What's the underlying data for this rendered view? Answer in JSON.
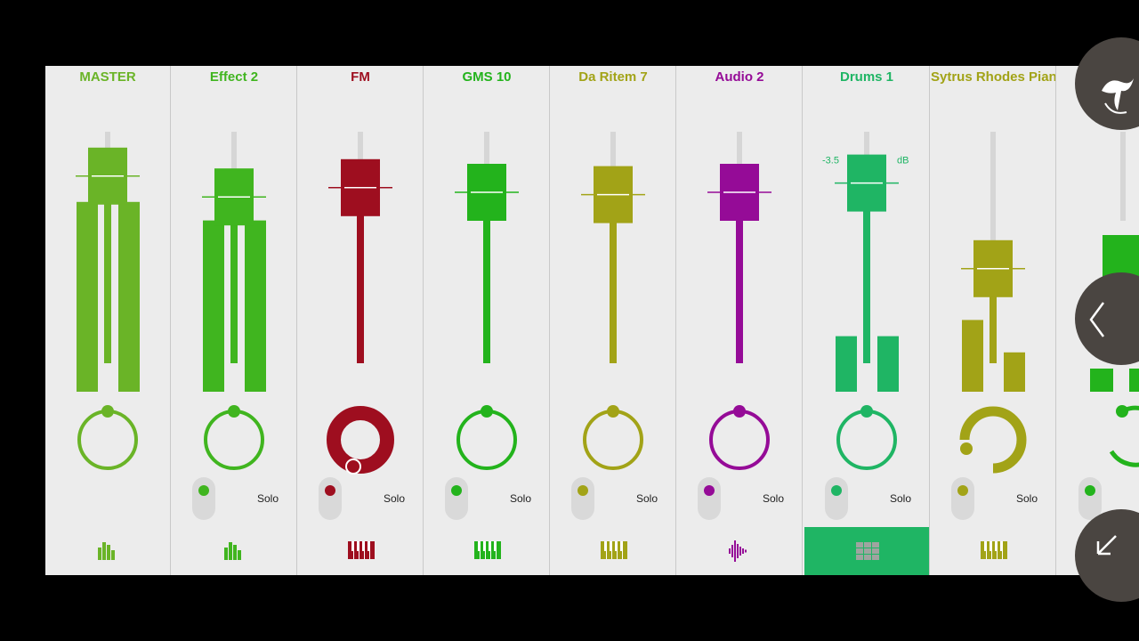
{
  "channels": [
    {
      "name": "MASTER",
      "color": "#6ab427",
      "meter": true,
      "solo": false,
      "icon": "meter-bars-icon",
      "pan": "center",
      "fader": 0.87
    },
    {
      "name": "Effect 2",
      "color": "#40b51f",
      "meter": true,
      "solo": true,
      "solo_label": "Solo",
      "icon": "meter-bars-icon",
      "pan": "center",
      "fader": 0.78
    },
    {
      "name": "FM",
      "color": "#9e0e1f",
      "meter": false,
      "solo": true,
      "solo_label": "Solo",
      "icon": "piano-keys-icon",
      "pan": "hard-left",
      "fader": 0.82
    },
    {
      "name": "GMS 10",
      "color": "#23b31c",
      "meter": false,
      "solo": true,
      "solo_label": "Solo",
      "icon": "piano-keys-icon",
      "pan": "center",
      "fader": 0.8
    },
    {
      "name": "Da Ritem 7",
      "color": "#a2a317",
      "meter": false,
      "solo": true,
      "solo_label": "Solo",
      "icon": "piano-keys-icon",
      "pan": "center",
      "fader": 0.79
    },
    {
      "name": "Audio 2",
      "color": "#950b97",
      "meter": false,
      "solo": true,
      "solo_label": "Solo",
      "icon": "waveform-icon",
      "pan": "center",
      "fader": 0.8
    },
    {
      "name": "Drums 1",
      "color": "#1fb564",
      "meter": true,
      "solo": true,
      "solo_label": "Solo",
      "icon": "drum-grid-icon",
      "pan": "center",
      "fader": 0.84,
      "db_value": "-3.5",
      "db_unit": "dB",
      "selected": true
    },
    {
      "name": "Sytrus Rhodes Piano",
      "color": "#a2a317",
      "meter": true,
      "solo": true,
      "solo_label": "Solo",
      "icon": "piano-keys-icon",
      "pan": "left",
      "fader": 0.47
    }
  ],
  "partial_channel": {
    "color": "#23b31c"
  },
  "colors": {
    "panel_bg": "#ececec",
    "fab_bg": "#4a4541"
  },
  "fabs": [
    {
      "name": "app-menu-icon"
    },
    {
      "name": "collapse-arrow-icon"
    },
    {
      "name": "expand-arrow-icon"
    }
  ]
}
